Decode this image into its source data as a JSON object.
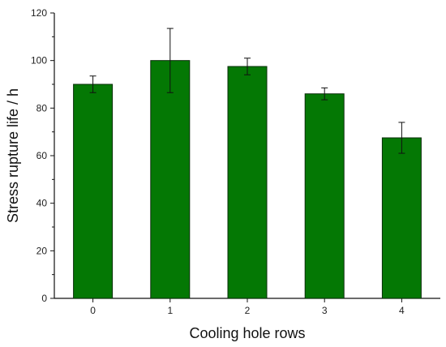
{
  "chart_data": {
    "type": "bar",
    "categories": [
      "0",
      "1",
      "2",
      "3",
      "4"
    ],
    "values": [
      90,
      100,
      97.5,
      86,
      67.5
    ],
    "errors": [
      3.5,
      13.5,
      3.5,
      2.5,
      6.5
    ],
    "xlabel": "Cooling hole rows",
    "ylabel": "Stress rupture life / h",
    "ylim": [
      0,
      120
    ],
    "yticks": [
      0,
      20,
      40,
      60,
      80,
      100,
      120
    ],
    "ytick_labels": [
      "0",
      "20",
      "40",
      "60",
      "80",
      "100",
      "120"
    ],
    "grid": false,
    "legend": "none",
    "colors": {
      "bar_fill": "#047804",
      "bar_stroke": "#0a2e0a",
      "error_bars": "#111111"
    }
  }
}
